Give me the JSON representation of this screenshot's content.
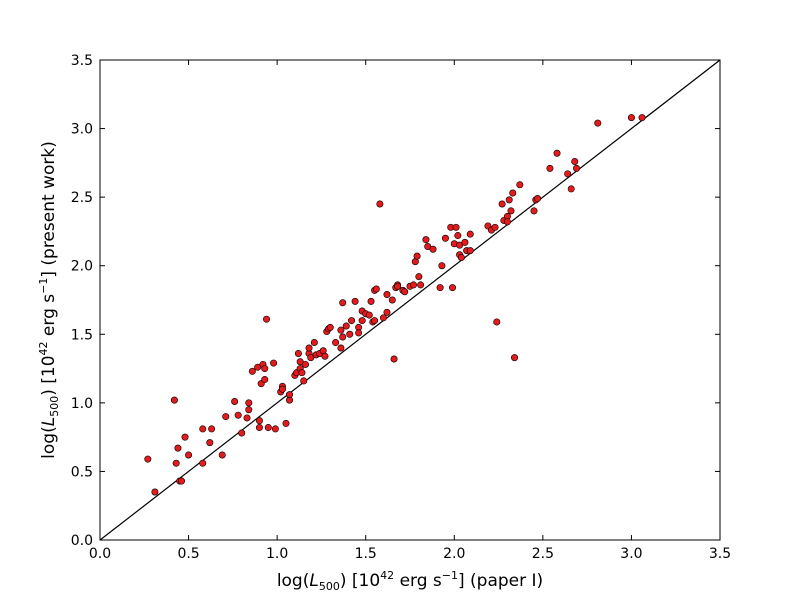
{
  "chart_data": {
    "type": "scatter",
    "xlabel": "log(L500) [10^42 erg s^-1] (paper I)",
    "ylabel": "log(L500) [10^42 erg s^-1] (present work)",
    "xlabel_parts": {
      "a": "log(",
      "b": "L",
      "c": "500",
      "d": ") [10",
      "e": "42",
      "f": " erg s",
      "g": "−1",
      "h": "] (paper I)"
    },
    "ylabel_parts": {
      "a": "log(",
      "b": "L",
      "c": "500",
      "d": ") [10",
      "e": "42",
      "f": " erg s",
      "g": "−1",
      "h": "] (present work)"
    },
    "xlim": [
      0.0,
      3.5
    ],
    "ylim": [
      0.0,
      3.5
    ],
    "xticks": [
      "0.0",
      "0.5",
      "1.0",
      "1.5",
      "2.0",
      "2.5",
      "3.0",
      "3.5"
    ],
    "yticks": [
      "0.0",
      "0.5",
      "1.0",
      "1.5",
      "2.0",
      "2.5",
      "3.0",
      "3.5"
    ],
    "grid": false,
    "reference_line": {
      "x": [
        0.0,
        3.5
      ],
      "y": [
        0.0,
        3.5
      ],
      "color": "#000000"
    },
    "marker_color": "#e41a1c",
    "marker_edge": "#000000",
    "points": [
      [
        0.27,
        0.59
      ],
      [
        0.31,
        0.35
      ],
      [
        0.42,
        1.02
      ],
      [
        0.43,
        0.56
      ],
      [
        0.44,
        0.67
      ],
      [
        0.45,
        0.43
      ],
      [
        0.46,
        0.43
      ],
      [
        0.48,
        0.75
      ],
      [
        0.5,
        0.62
      ],
      [
        0.58,
        0.81
      ],
      [
        0.58,
        0.56
      ],
      [
        0.62,
        0.71
      ],
      [
        0.63,
        0.81
      ],
      [
        0.69,
        0.62
      ],
      [
        0.71,
        0.9
      ],
      [
        0.76,
        1.01
      ],
      [
        0.78,
        0.91
      ],
      [
        0.8,
        0.78
      ],
      [
        0.83,
        0.89
      ],
      [
        0.84,
        0.95
      ],
      [
        0.84,
        1.0
      ],
      [
        0.86,
        1.23
      ],
      [
        0.89,
        1.26
      ],
      [
        0.9,
        0.87
      ],
      [
        0.9,
        0.82
      ],
      [
        0.91,
        1.14
      ],
      [
        0.92,
        1.28
      ],
      [
        0.93,
        1.17
      ],
      [
        0.93,
        1.25
      ],
      [
        0.94,
        1.61
      ],
      [
        0.95,
        0.82
      ],
      [
        0.98,
        1.29
      ],
      [
        0.99,
        0.81
      ],
      [
        1.02,
        1.08
      ],
      [
        1.03,
        1.12
      ],
      [
        1.03,
        1.1
      ],
      [
        1.05,
        0.85
      ],
      [
        1.07,
        1.02
      ],
      [
        1.07,
        1.06
      ],
      [
        1.1,
        1.2
      ],
      [
        1.11,
        1.22
      ],
      [
        1.12,
        1.36
      ],
      [
        1.13,
        1.25
      ],
      [
        1.13,
        1.3
      ],
      [
        1.14,
        1.22
      ],
      [
        1.15,
        1.16
      ],
      [
        1.16,
        1.28
      ],
      [
        1.18,
        1.36
      ],
      [
        1.18,
        1.4
      ],
      [
        1.19,
        1.33
      ],
      [
        1.21,
        1.44
      ],
      [
        1.22,
        1.35
      ],
      [
        1.24,
        1.36
      ],
      [
        1.26,
        1.38
      ],
      [
        1.27,
        1.34
      ],
      [
        1.28,
        1.52
      ],
      [
        1.29,
        1.54
      ],
      [
        1.3,
        1.55
      ],
      [
        1.33,
        1.44
      ],
      [
        1.36,
        1.4
      ],
      [
        1.36,
        1.53
      ],
      [
        1.37,
        1.48
      ],
      [
        1.37,
        1.73
      ],
      [
        1.39,
        1.56
      ],
      [
        1.41,
        1.5
      ],
      [
        1.42,
        1.6
      ],
      [
        1.44,
        1.74
      ],
      [
        1.46,
        1.55
      ],
      [
        1.46,
        1.51
      ],
      [
        1.48,
        1.6
      ],
      [
        1.48,
        1.67
      ],
      [
        1.5,
        1.65
      ],
      [
        1.52,
        1.64
      ],
      [
        1.53,
        1.74
      ],
      [
        1.54,
        1.59
      ],
      [
        1.55,
        1.82
      ],
      [
        1.55,
        1.6
      ],
      [
        1.56,
        1.83
      ],
      [
        1.58,
        2.45
      ],
      [
        1.6,
        1.62
      ],
      [
        1.62,
        1.66
      ],
      [
        1.62,
        1.79
      ],
      [
        1.65,
        1.75
      ],
      [
        1.66,
        1.32
      ],
      [
        1.67,
        1.84
      ],
      [
        1.68,
        1.86
      ],
      [
        1.68,
        1.85
      ],
      [
        1.71,
        1.82
      ],
      [
        1.72,
        1.81
      ],
      [
        1.75,
        1.85
      ],
      [
        1.77,
        1.86
      ],
      [
        1.78,
        2.03
      ],
      [
        1.79,
        2.07
      ],
      [
        1.8,
        1.92
      ],
      [
        1.81,
        1.86
      ],
      [
        1.84,
        2.19
      ],
      [
        1.85,
        2.14
      ],
      [
        1.88,
        2.12
      ],
      [
        1.92,
        1.84
      ],
      [
        1.93,
        2.0
      ],
      [
        1.95,
        2.2
      ],
      [
        1.98,
        2.28
      ],
      [
        1.99,
        1.84
      ],
      [
        2.0,
        2.16
      ],
      [
        2.01,
        2.28
      ],
      [
        2.02,
        2.22
      ],
      [
        2.03,
        2.15
      ],
      [
        2.03,
        2.08
      ],
      [
        2.04,
        2.06
      ],
      [
        2.06,
        2.17
      ],
      [
        2.07,
        2.11
      ],
      [
        2.09,
        2.23
      ],
      [
        2.09,
        2.11
      ],
      [
        2.19,
        2.29
      ],
      [
        2.21,
        2.26
      ],
      [
        2.23,
        2.28
      ],
      [
        2.24,
        1.59
      ],
      [
        2.27,
        2.45
      ],
      [
        2.28,
        2.33
      ],
      [
        2.3,
        2.36
      ],
      [
        2.3,
        2.32
      ],
      [
        2.31,
        2.48
      ],
      [
        2.32,
        2.4
      ],
      [
        2.33,
        2.53
      ],
      [
        2.34,
        1.33
      ],
      [
        2.37,
        2.59
      ],
      [
        2.45,
        2.4
      ],
      [
        2.46,
        2.48
      ],
      [
        2.47,
        2.49
      ],
      [
        2.54,
        2.71
      ],
      [
        2.58,
        2.82
      ],
      [
        2.64,
        2.67
      ],
      [
        2.66,
        2.56
      ],
      [
        2.68,
        2.76
      ],
      [
        2.69,
        2.71
      ],
      [
        2.81,
        3.04
      ],
      [
        3.0,
        3.08
      ],
      [
        3.06,
        3.08
      ]
    ]
  }
}
